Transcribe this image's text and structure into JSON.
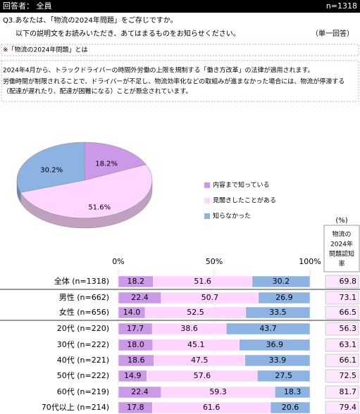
{
  "header": {
    "respondents": "回答者： 全員",
    "n": "n=1318"
  },
  "question": {
    "line1": "Q3.あなたは、「物流の2024年問題」をご存じですか。",
    "line2": "以下の説明文をお読みいただき、あてはまるものをお知らせください。",
    "answer_type": "（単一回答）"
  },
  "explanation": {
    "title": "※「物流の2024年問題」とは",
    "lines": [
      "2024年4月から、トラックドライバーの時間外労働の上限を規制する「働き方改革」の法律が適用されます。",
      "労働時間が制限されることで、ドライバーが不足し、物流効率化などの取組みが進まなかった場合には、物流が停滞する",
      "（配達が遅れたり、配達が困難になる）ことが懸念されています。"
    ]
  },
  "chart_data": [
    {
      "type": "pie",
      "categories": [
        "内容まで知っている",
        "見聞きしたことがある",
        "知らなかった"
      ],
      "values": [
        18.2,
        51.6,
        30.2
      ],
      "value_labels": [
        "18.2%",
        "51.6%",
        "30.2%"
      ],
      "colors": [
        "#cc99e8",
        "#ffd6ff",
        "#8db3e2"
      ],
      "legend": "right"
    },
    {
      "type": "stacked-bar",
      "orientation": "horizontal",
      "categories": [
        "全体 (n=1318)",
        "男性 (n=662)",
        "女性 (n=656)",
        "20代 (n=220)",
        "30代 (n=222)",
        "40代 (n=221)",
        "50代 (n=222)",
        "60代 (n=219)",
        "70代以上 (n=214)"
      ],
      "series": [
        {
          "name": "内容まで知っている",
          "color": "#cc99e8",
          "values": [
            18.2,
            22.4,
            14.0,
            17.7,
            18.0,
            18.6,
            14.9,
            22.4,
            17.8
          ],
          "value_labels": [
            "18.2",
            "22.4",
            "14.0",
            "17.7",
            "18.0",
            "18.6",
            "14.9",
            "22.4",
            "17.8"
          ]
        },
        {
          "name": "見聞きしたことがある",
          "color": "#ffd6ff",
          "values": [
            51.6,
            50.7,
            52.5,
            38.6,
            45.1,
            47.5,
            57.6,
            59.3,
            61.6
          ],
          "value_labels": [
            "51.6",
            "50.7",
            "52.5",
            "38.6",
            "45.1",
            "47.5",
            "57.6",
            "59.3",
            "61.6"
          ]
        },
        {
          "name": "知らなかった",
          "color": "#8db3e2",
          "values": [
            30.2,
            26.9,
            33.5,
            43.7,
            36.9,
            33.9,
            27.5,
            18.3,
            20.6
          ],
          "value_labels": [
            "30.2",
            "26.9",
            "33.5",
            "43.7",
            "36.9",
            "33.9",
            "27.5",
            "18.3",
            "20.6"
          ]
        }
      ],
      "xlim": [
        0,
        100
      ],
      "xticks": [
        {
          "value": 0,
          "label": "0%"
        },
        {
          "value": 50,
          "label": "50%"
        },
        {
          "value": 100,
          "label": "100%"
        }
      ],
      "grid": true,
      "side_column": {
        "unit": "(%)",
        "header": [
          "物流の",
          "2024年",
          "問題認知",
          "率"
        ],
        "values": [
          69.8,
          73.1,
          66.5,
          56.3,
          63.1,
          66.1,
          72.5,
          81.7,
          79.4
        ]
      }
    }
  ]
}
